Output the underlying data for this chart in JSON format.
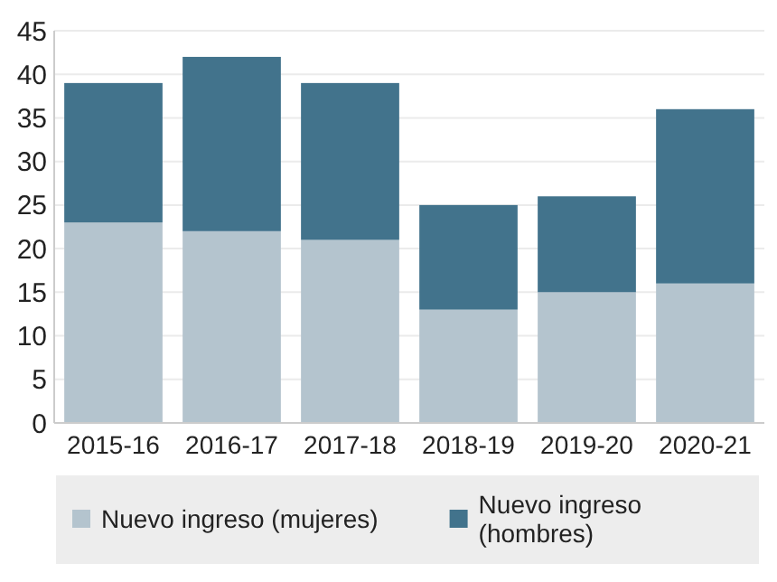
{
  "chart_data": {
    "type": "bar",
    "stacked": true,
    "categories": [
      "2015-16",
      "2016-17",
      "2017-18",
      "2018-19",
      "2019-20",
      "2020-21"
    ],
    "series": [
      {
        "name": "Nuevo ingreso (mujeres)",
        "color": "#b4c4ce",
        "values": [
          23,
          22,
          21,
          13,
          15,
          16
        ]
      },
      {
        "name": "Nuevo ingreso (hombres)",
        "color": "#42738c",
        "values": [
          16,
          20,
          18,
          12,
          11,
          20
        ]
      }
    ],
    "ylim": [
      0,
      45
    ],
    "yticks": [
      0,
      5,
      10,
      15,
      20,
      25,
      30,
      35,
      40,
      45
    ],
    "grid": "y",
    "legend": "bottom"
  }
}
